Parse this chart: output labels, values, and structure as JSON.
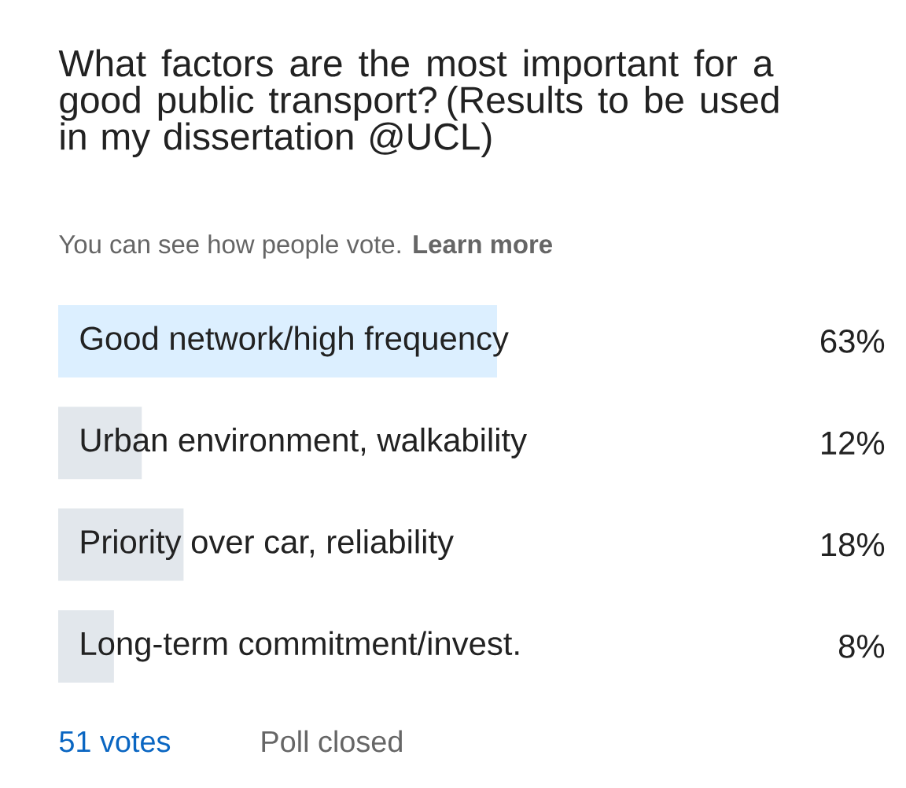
{
  "chart_data": {
    "type": "bar",
    "orientation": "horizontal",
    "title": "What factors are the most important for a good public transport? (Results to be used in my dissertation @UCL)",
    "subtitle": "You can see how people vote. **Learn more**",
    "categories": [
      "Good network/high frequency",
      "Urban environment, walkability",
      "Priority over car, reliability",
      "Long-term commitment/invest."
    ],
    "values": [
      63,
      12,
      18,
      8
    ],
    "value_labels": [
      "63%",
      "12%",
      "18%",
      "8%"
    ],
    "colors": [
      "#dcefff",
      "#e2e7ec",
      "#e2e7ec",
      "#e2e7ec"
    ],
    "tick_labels": false,
    "annotations": [
      "51 votes",
      "Poll closed"
    ]
  }
}
